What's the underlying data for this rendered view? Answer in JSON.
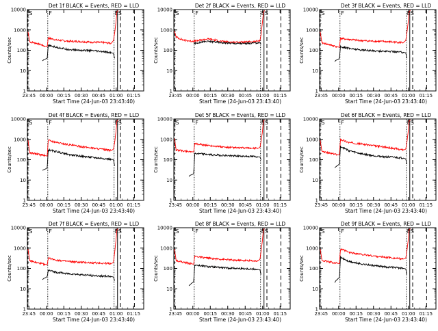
{
  "figure": {
    "xlabel": "Start Time (24-Jun-03 23:43:40)",
    "ylabel": "Counts/sec",
    "x_tick_labels": [
      "23:45",
      "00:00",
      "00:15",
      "00:30",
      "00:45",
      "01:00",
      "01:15"
    ],
    "y_tick_labels": [
      "1",
      "10",
      "100",
      "1000",
      "10000"
    ],
    "x_tick_minutes": [
      1.33,
      16.33,
      31.33,
      46.33,
      61.33,
      76.33,
      91.33
    ],
    "marker_labels": {
      "start": "S",
      "flare": "F",
      "end": "E",
      "seg": "S"
    },
    "colors": {
      "events": "#000000",
      "lld": "#ff0000",
      "axis": "#000000"
    }
  },
  "chart_data": [
    {
      "type": "line",
      "title": "Det 1f BLACK = Events, RED = LLD",
      "xlim": [
        0,
        100
      ],
      "ylim": [
        1,
        10000
      ],
      "yscale": "log",
      "markers": {
        "S": 0.5,
        "F": 17.5,
        "E1": 74.5,
        "E2": 77.5,
        "dash1": 80.0,
        "dash2": 92.0
      },
      "series": [
        {
          "name": "LLD",
          "color": "#ff0000",
          "x": [
            0.5,
            2,
            8,
            15,
            17,
            18,
            25,
            35,
            45,
            55,
            65,
            72,
            74,
            75,
            76,
            77,
            78
          ],
          "y": [
            800,
            260,
            220,
            160,
            150,
            400,
            320,
            280,
            270,
            250,
            240,
            220,
            300,
            700,
            2000,
            8000,
            9000
          ]
        },
        {
          "name": "Events",
          "color": "#000000",
          "x": [
            13,
            14,
            15,
            16,
            17,
            18,
            25,
            35,
            45,
            55,
            65,
            72,
            74,
            75
          ],
          "y": [
            30,
            34,
            36,
            38,
            40,
            170,
            140,
            110,
            100,
            95,
            85,
            75,
            70,
            40
          ]
        }
      ]
    },
    {
      "type": "line",
      "title": "Det 2f BLACK = Events, RED = LLD",
      "xlim": [
        0,
        100
      ],
      "ylim": [
        1,
        10000
      ],
      "yscale": "log",
      "markers": {
        "S": 0.5,
        "F": 17.5,
        "E1": 74.5,
        "E2": 77.5,
        "dash1": 80.0,
        "dash2": 92.0
      },
      "series": [
        {
          "name": "LLD",
          "color": "#ff0000",
          "x": [
            0.5,
            2,
            8,
            15,
            20,
            25,
            30,
            35,
            40,
            45,
            50,
            55,
            60,
            65,
            70,
            74,
            75,
            76,
            77,
            78
          ],
          "y": [
            900,
            450,
            320,
            280,
            290,
            330,
            360,
            320,
            280,
            260,
            250,
            250,
            250,
            260,
            270,
            300,
            600,
            2000,
            7000,
            9000
          ]
        },
        {
          "name": "Events",
          "color": "#000000",
          "x": [
            17,
            20,
            25,
            30,
            35,
            40,
            45,
            50,
            55,
            60,
            65,
            70,
            74,
            75
          ],
          "y": [
            210,
            230,
            260,
            270,
            260,
            240,
            230,
            220,
            215,
            215,
            220,
            230,
            240,
            200
          ]
        }
      ]
    },
    {
      "type": "line",
      "title": "Det 3f BLACK = Events, RED = LLD",
      "xlim": [
        0,
        100
      ],
      "ylim": [
        1,
        10000
      ],
      "yscale": "log",
      "markers": {
        "S": 0.5,
        "F": 17.5,
        "E1": 74.5,
        "E2": 77.5,
        "dash1": 80.0,
        "dash2": 92.0
      },
      "series": [
        {
          "name": "LLD",
          "color": "#ff0000",
          "x": [
            0.5,
            2,
            8,
            15,
            17,
            18,
            25,
            35,
            45,
            55,
            65,
            72,
            74,
            75,
            76,
            77,
            78
          ],
          "y": [
            800,
            230,
            190,
            150,
            140,
            380,
            340,
            300,
            280,
            270,
            250,
            240,
            300,
            700,
            2000,
            8000,
            9000
          ]
        },
        {
          "name": "Events",
          "color": "#000000",
          "x": [
            13,
            14,
            15,
            16,
            17,
            18,
            25,
            35,
            45,
            55,
            65,
            72,
            74,
            75
          ],
          "y": [
            28,
            32,
            34,
            36,
            40,
            150,
            125,
            105,
            95,
            90,
            85,
            80,
            75,
            40
          ]
        }
      ]
    },
    {
      "type": "line",
      "title": "Det 4f BLACK = Events, RED = LLD",
      "xlim": [
        0,
        100
      ],
      "ylim": [
        1,
        10000
      ],
      "yscale": "log",
      "markers": {
        "S": 0.5,
        "F": 17.5,
        "E1": 74.5,
        "E2": 77.5,
        "dash1": 80.0,
        "dash2": 92.0
      },
      "series": [
        {
          "name": "LLD",
          "color": "#ff0000",
          "x": [
            0.5,
            2,
            8,
            15,
            17,
            18,
            25,
            35,
            45,
            55,
            65,
            72,
            74,
            75,
            76,
            77,
            78
          ],
          "y": [
            900,
            220,
            190,
            160,
            150,
            900,
            700,
            550,
            450,
            380,
            320,
            280,
            330,
            700,
            2000,
            8000,
            9000
          ]
        },
        {
          "name": "Events",
          "color": "#000000",
          "x": [
            13,
            14,
            15,
            16,
            17,
            18,
            25,
            35,
            45,
            55,
            65,
            72,
            74,
            75
          ],
          "y": [
            30,
            32,
            34,
            36,
            40,
            300,
            250,
            180,
            150,
            130,
            115,
            105,
            100,
            50
          ]
        }
      ]
    },
    {
      "type": "line",
      "title": "Det 5f BLACK = Events, RED = LLD",
      "xlim": [
        0,
        100
      ],
      "ylim": [
        1,
        10000
      ],
      "yscale": "log",
      "markers": {
        "S": 0.5,
        "F": 17.5,
        "E1": 74.5,
        "E2": 77.5,
        "dash1": 80.0,
        "dash2": 92.0
      },
      "series": [
        {
          "name": "LLD",
          "color": "#ff0000",
          "x": [
            0.5,
            2,
            8,
            15,
            17,
            18,
            25,
            35,
            45,
            55,
            65,
            72,
            74,
            75,
            76,
            77,
            78
          ],
          "y": [
            1100,
            300,
            270,
            250,
            240,
            600,
            540,
            470,
            400,
            380,
            370,
            360,
            400,
            800,
            2000,
            8000,
            9000
          ]
        },
        {
          "name": "Events",
          "color": "#000000",
          "x": [
            13,
            14,
            15,
            16,
            17,
            18,
            25,
            35,
            45,
            55,
            65,
            72,
            74,
            75
          ],
          "y": [
            15,
            17,
            18,
            19,
            20,
            200,
            190,
            170,
            160,
            150,
            145,
            140,
            135,
            100
          ]
        }
      ]
    },
    {
      "type": "line",
      "title": "Det 6f BLACK = Events, RED = LLD",
      "xlim": [
        0,
        100
      ],
      "ylim": [
        1,
        10000
      ],
      "yscale": "log",
      "markers": {
        "S": 0.5,
        "F": 17.5,
        "E1": 74.5,
        "E2": 77.5,
        "dash1": 80.0,
        "dash2": 92.0
      },
      "series": [
        {
          "name": "LLD",
          "color": "#ff0000",
          "x": [
            0.5,
            2,
            8,
            15,
            17,
            18,
            25,
            35,
            45,
            55,
            65,
            72,
            74,
            75,
            76,
            77,
            78
          ],
          "y": [
            900,
            250,
            210,
            180,
            170,
            1000,
            700,
            600,
            500,
            420,
            350,
            300,
            330,
            700,
            2000,
            8000,
            9000
          ]
        },
        {
          "name": "Events",
          "color": "#000000",
          "x": [
            13,
            14,
            15,
            16,
            17,
            18,
            25,
            35,
            45,
            55,
            65,
            72,
            74,
            75
          ],
          "y": [
            40,
            45,
            50,
            55,
            60,
            450,
            280,
            200,
            160,
            140,
            130,
            120,
            110,
            60
          ]
        }
      ]
    },
    {
      "type": "line",
      "title": "Det 7f BLACK = Events, RED = LLD",
      "xlim": [
        0,
        100
      ],
      "ylim": [
        1,
        10000
      ],
      "yscale": "log",
      "markers": {
        "S": 0.5,
        "F": 17.5,
        "E1": 74.5,
        "E2": 77.5,
        "dash1": 80.0,
        "dash2": 92.0
      },
      "series": [
        {
          "name": "LLD",
          "color": "#ff0000",
          "x": [
            0.5,
            2,
            8,
            15,
            17,
            18,
            25,
            35,
            45,
            55,
            65,
            72,
            74,
            75,
            76,
            77,
            78
          ],
          "y": [
            900,
            240,
            190,
            160,
            150,
            320,
            260,
            220,
            200,
            190,
            180,
            170,
            200,
            600,
            2000,
            8000,
            9000
          ]
        },
        {
          "name": "Events",
          "color": "#000000",
          "x": [
            13,
            14,
            15,
            16,
            17,
            18,
            25,
            35,
            45,
            55,
            65,
            72,
            74,
            75
          ],
          "y": [
            28,
            32,
            34,
            36,
            40,
            80,
            65,
            55,
            50,
            45,
            42,
            40,
            38,
            25
          ]
        }
      ]
    },
    {
      "type": "line",
      "title": "Det 8f BLACK = Events, RED = LLD",
      "xlim": [
        0,
        100
      ],
      "ylim": [
        1,
        10000
      ],
      "yscale": "log",
      "markers": {
        "S": 0.5,
        "F": 17.5,
        "E1": 74.5,
        "E2": 77.5,
        "dash1": 80.0,
        "dash2": 92.0
      },
      "series": [
        {
          "name": "LLD",
          "color": "#ff0000",
          "x": [
            0.5,
            2,
            8,
            15,
            17,
            18,
            25,
            35,
            45,
            55,
            65,
            72,
            74,
            75,
            76,
            77,
            78
          ],
          "y": [
            900,
            250,
            200,
            170,
            160,
            400,
            340,
            300,
            270,
            250,
            240,
            230,
            280,
            700,
            2000,
            8000,
            9000
          ]
        },
        {
          "name": "Events",
          "color": "#000000",
          "x": [
            13,
            14,
            15,
            16,
            17,
            18,
            25,
            35,
            45,
            55,
            65,
            72,
            74,
            75
          ],
          "y": [
            14,
            16,
            18,
            20,
            22,
            150,
            130,
            115,
            105,
            100,
            95,
            90,
            85,
            50
          ]
        }
      ]
    },
    {
      "type": "line",
      "title": "Det 9f BLACK = Events, RED = LLD",
      "xlim": [
        0,
        100
      ],
      "ylim": [
        1,
        10000
      ],
      "yscale": "log",
      "markers": {
        "S": 0.5,
        "F": 17.5,
        "E1": 74.5,
        "E2": 77.5,
        "dash1": 80.0,
        "dash2": 92.0
      },
      "series": [
        {
          "name": "LLD",
          "color": "#ff0000",
          "x": [
            0.5,
            2,
            8,
            15,
            17,
            18,
            25,
            35,
            45,
            55,
            65,
            72,
            74,
            75,
            76,
            77,
            78
          ],
          "y": [
            900,
            250,
            210,
            180,
            170,
            900,
            620,
            500,
            420,
            360,
            320,
            290,
            320,
            700,
            2000,
            8000,
            9000
          ]
        },
        {
          "name": "Events",
          "color": "#000000",
          "x": [
            13,
            14,
            15,
            16,
            17,
            18,
            25,
            35,
            45,
            55,
            65,
            72,
            74,
            75
          ],
          "y": [
            20,
            25,
            28,
            32,
            35,
            350,
            220,
            170,
            140,
            120,
            110,
            100,
            95,
            50
          ]
        }
      ]
    }
  ]
}
